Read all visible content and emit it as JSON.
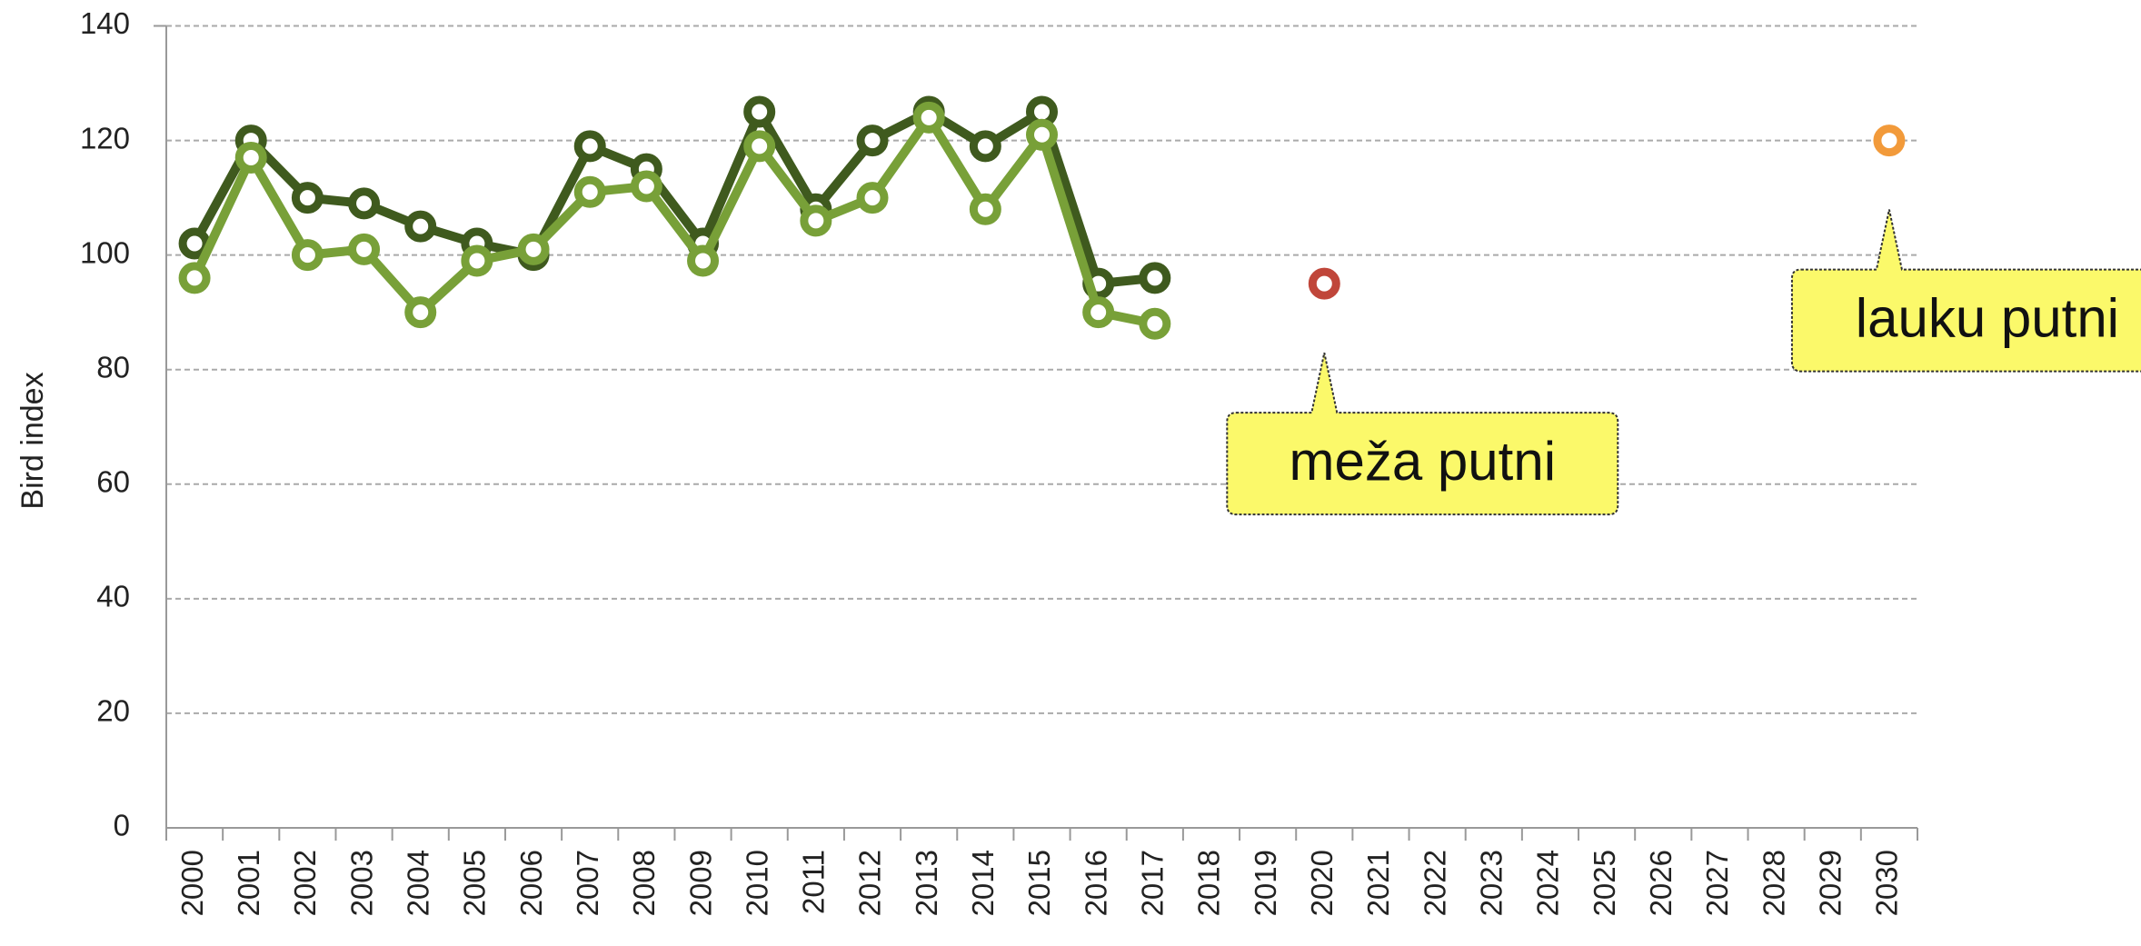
{
  "chart_data": {
    "type": "line",
    "y_label": "Bird index",
    "categories": [
      "2000",
      "2001",
      "2002",
      "2003",
      "2004",
      "2005",
      "2006",
      "2007",
      "2008",
      "2009",
      "2010",
      "2011",
      "2012",
      "2013",
      "2014",
      "2015",
      "2016",
      "2017",
      "2018",
      "2019",
      "2020",
      "2021",
      "2022",
      "2023",
      "2024",
      "2025",
      "2026",
      "2027",
      "2028",
      "2029",
      "2030"
    ],
    "series": [
      {
        "color": "#3f5a1e",
        "values": [
          102,
          120,
          110,
          109,
          105,
          102,
          100,
          119,
          115,
          102,
          125,
          108,
          120,
          125,
          119,
          125,
          95,
          96,
          null,
          null,
          null,
          null,
          null,
          null,
          null,
          null,
          null,
          null,
          null,
          null,
          null
        ]
      },
      {
        "color": "#78a038",
        "values": [
          96,
          117,
          100,
          101,
          90,
          99,
          101,
          111,
          112,
          99,
          119,
          106,
          110,
          124,
          108,
          121,
          90,
          88,
          null,
          null,
          null,
          null,
          null,
          null,
          null,
          null,
          null,
          null,
          null,
          null,
          null
        ]
      },
      {
        "name": "meža putni",
        "color": "#c0463a",
        "style": "marker",
        "values": [
          null,
          null,
          null,
          null,
          null,
          null,
          null,
          null,
          null,
          null,
          null,
          null,
          null,
          null,
          null,
          null,
          null,
          null,
          null,
          null,
          95,
          null,
          null,
          null,
          null,
          null,
          null,
          null,
          null,
          null,
          null
        ]
      },
      {
        "name": "lauku putni",
        "color": "#f29a3a",
        "style": "marker",
        "values": [
          null,
          null,
          null,
          null,
          null,
          null,
          null,
          null,
          null,
          null,
          null,
          null,
          null,
          null,
          null,
          null,
          null,
          null,
          null,
          null,
          null,
          null,
          null,
          null,
          null,
          null,
          null,
          null,
          null,
          null,
          120
        ]
      }
    ],
    "ylim": [
      0,
      140
    ],
    "yticks": [
      0,
      20,
      40,
      60,
      80,
      100,
      120,
      140
    ],
    "grid": true
  }
}
